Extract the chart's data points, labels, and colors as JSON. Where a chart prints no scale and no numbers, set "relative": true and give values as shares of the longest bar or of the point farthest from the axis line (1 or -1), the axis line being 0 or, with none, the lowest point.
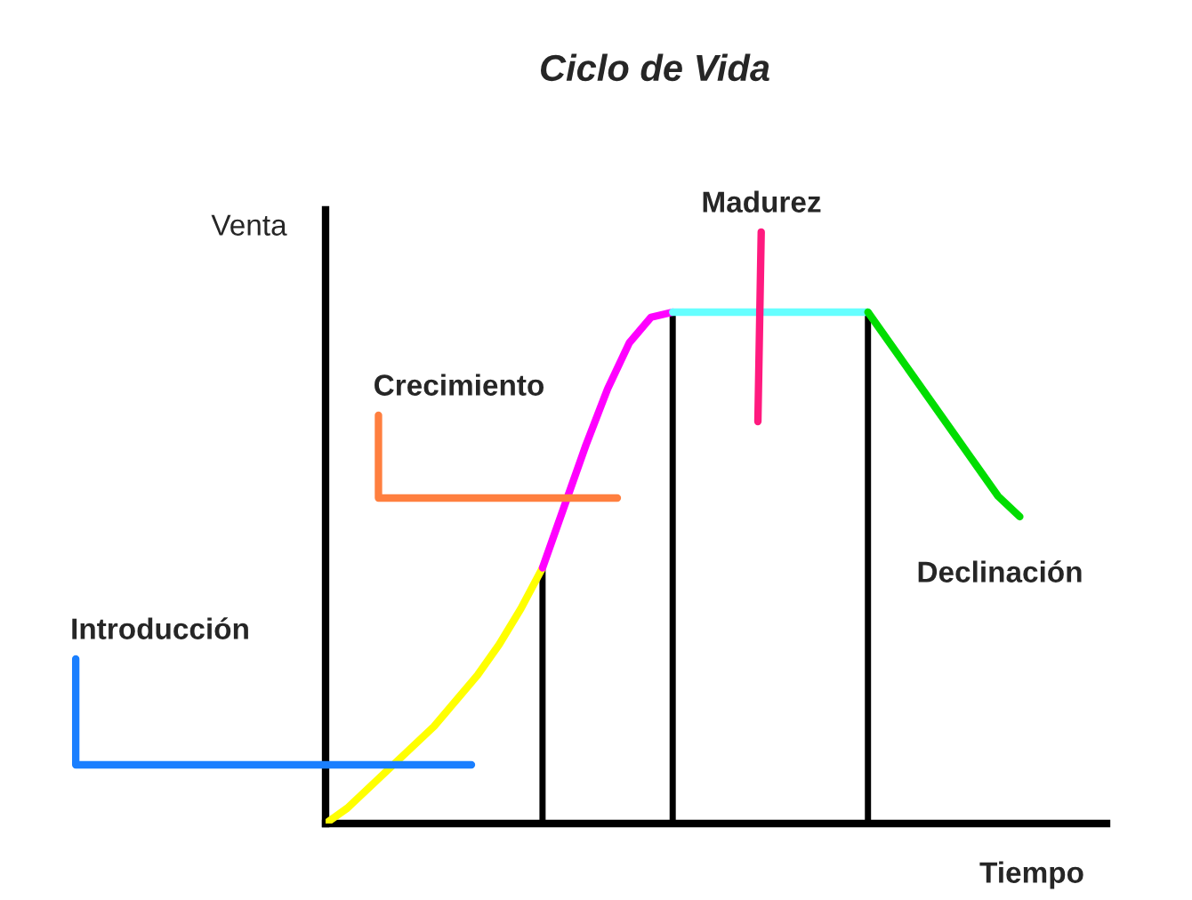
{
  "chart_data": {
    "type": "line",
    "title": "Ciclo de Vida",
    "xlabel": "Tiempo",
    "ylabel": "Venta",
    "relative": true,
    "categories": [
      null,
      null,
      null,
      null,
      null,
      null,
      null,
      null,
      null,
      null,
      null,
      null,
      null,
      null,
      null,
      null,
      null,
      null,
      null,
      null,
      null,
      null,
      null,
      null,
      null,
      null,
      null,
      null,
      null,
      null,
      null,
      null,
      null,
      null,
      null,
      null,
      null
    ],
    "tick_labels": false,
    "legend": false,
    "marker": "none",
    "line_style": "solid",
    "series": [
      {
        "color": "#ffff00",
        "values": [
          0,
          0.03,
          0.07,
          0.11,
          0.15,
          0.19,
          0.24,
          0.29,
          0.35,
          0.42,
          0.5,
          null,
          null,
          null,
          null,
          null,
          null,
          null,
          null,
          null,
          null,
          null,
          null,
          null,
          null,
          null,
          null,
          null,
          null,
          null,
          null,
          null,
          null,
          null,
          null,
          null,
          null
        ]
      },
      {
        "color": "#ff00ff",
        "values": [
          null,
          null,
          null,
          null,
          null,
          null,
          null,
          null,
          null,
          null,
          0.5,
          0.62,
          0.74,
          0.85,
          0.94,
          0.99,
          1,
          null,
          null,
          null,
          null,
          null,
          null,
          null,
          null,
          null,
          null,
          null,
          null,
          null,
          null,
          null,
          null,
          null,
          null,
          null,
          null
        ]
      },
      {
        "color": "#66ffff",
        "values": [
          null,
          null,
          null,
          null,
          null,
          null,
          null,
          null,
          null,
          null,
          null,
          null,
          null,
          null,
          null,
          null,
          1,
          1,
          1,
          1,
          1,
          1,
          1,
          1,
          1,
          1,
          null,
          null,
          null,
          null,
          null,
          null,
          null,
          null,
          null,
          null,
          null
        ]
      },
      {
        "color": "#00dd00",
        "values": [
          null,
          null,
          null,
          null,
          null,
          null,
          null,
          null,
          null,
          null,
          null,
          null,
          null,
          null,
          null,
          null,
          null,
          null,
          null,
          null,
          null,
          null,
          null,
          null,
          null,
          1,
          0.94,
          0.88,
          0.82,
          0.76,
          0.7,
          0.64,
          0.6,
          null,
          null,
          null,
          null
        ]
      }
    ],
    "annotations": [
      "Introducción",
      "Crecimiento",
      "Madurez",
      "Declinación"
    ]
  }
}
